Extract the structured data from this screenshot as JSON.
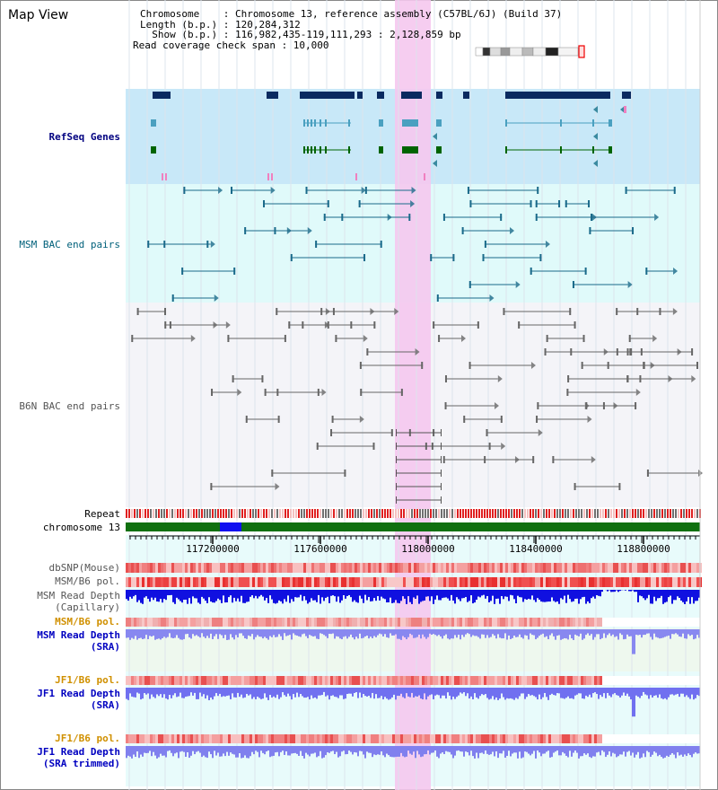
{
  "title": "Map View",
  "info": {
    "chromosome_line": "Chromosome    : Chromosome 13, reference assembly (C57BL/6J) (Build 37)",
    "length_line": "Length (b.p.) : 120,284,312",
    "show_line": "  Show (b.p.) : 116,982,435-119,111,293 : 2,128,859 bp",
    "coverage_line": "Read coverage check span : 10,000"
  },
  "tracks": {
    "refseq": "RefSeq Genes",
    "msm_bac": "MSM BAC end pairs",
    "b6n_bac": "B6N BAC end pairs",
    "repeat": "Repeat",
    "chromosome": "chromosome 13",
    "dbsnp": "dbSNP(Mouse)",
    "msm_b6_pol_1": "MSM/B6 pol.",
    "msm_read_depth_cap_1": "MSM Read Depth",
    "msm_read_depth_cap_2": "(Capillary)",
    "msm_b6_pol_2": "MSM/B6 pol.",
    "msm_read_depth_sra_1": "MSM Read Depth",
    "msm_read_depth_sra_2": "(SRA)",
    "jf1_b6_pol_1": "JF1/B6 pol.",
    "jf1_read_depth_sra_1": "JF1 Read Depth",
    "jf1_read_depth_sra_2": "(SRA)",
    "jf1_b6_pol_2": "JF1/B6 pol.",
    "jf1_read_depth_trim_1": "JF1 Read Depth",
    "jf1_read_depth_trim_2": "(SRA trimmed)"
  },
  "axis": {
    "ticks": [
      "117200000",
      "117600000",
      "118000000",
      "118400000",
      "118800000"
    ]
  },
  "colors": {
    "highlight": "#f5c8ee",
    "refseq_bg": "#c8e8f8",
    "msm_bg": "#e0fafa",
    "b6n_bg": "#f4f4f8",
    "navy": "#0a2a60",
    "teal": "#1a6a8a",
    "green": "#006400",
    "grey": "#555555",
    "red": "#e03030",
    "depth_blue": "#1010e0",
    "depth_light": "#7070f0"
  }
}
